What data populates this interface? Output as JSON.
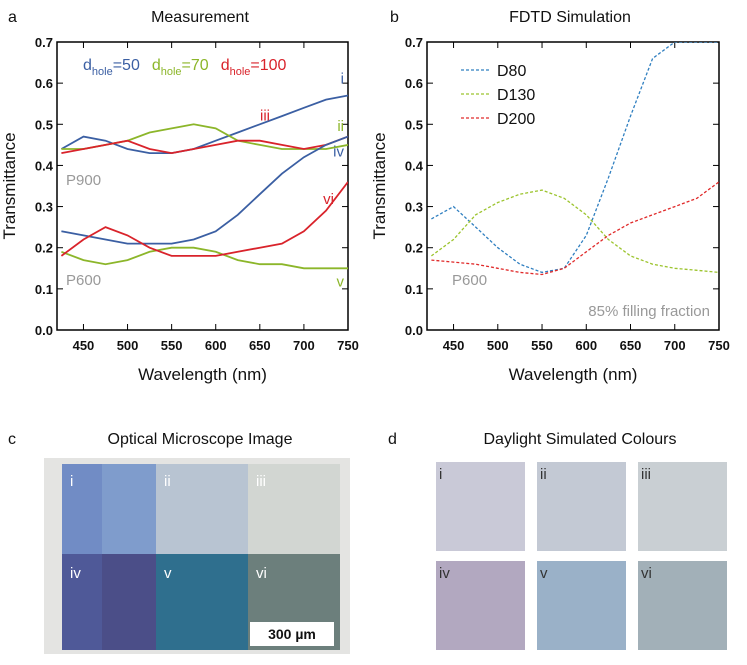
{
  "chart_data": [
    {
      "type": "line",
      "panel_label": "a",
      "title": "Measurement",
      "x_label": "Wavelength (nm)",
      "y_label": "Transmittance",
      "x": [
        425,
        450,
        475,
        500,
        525,
        550,
        575,
        600,
        625,
        650,
        675,
        700,
        725,
        750
      ],
      "xlim": [
        420,
        750
      ],
      "xticks": [
        450,
        500,
        550,
        600,
        650,
        700,
        750
      ],
      "ylim": [
        0,
        0.7
      ],
      "yticks": [
        {
          "value": 0,
          "label": "0.0"
        },
        0.1,
        0.2,
        0.3,
        0.4,
        0.5,
        0.6,
        0.7
      ],
      "legend": [
        {
          "text": "d",
          "subscript": "hole",
          "suffix": "=50",
          "color": "#3b5fa3"
        },
        {
          "text": "d",
          "subscript": "hole",
          "suffix": "=70",
          "color": "#8cb62a"
        },
        {
          "text": "d",
          "subscript": "hole",
          "suffix": "=100",
          "color": "#d9232b"
        }
      ],
      "annotations": [
        "P900",
        "P600"
      ],
      "line_style": "solid",
      "series": [
        {
          "label": "i",
          "color": "#3b5fa3",
          "values": [
            0.44,
            0.47,
            0.46,
            0.44,
            0.43,
            0.43,
            0.44,
            0.46,
            0.48,
            0.5,
            0.52,
            0.54,
            0.56,
            0.57
          ]
        },
        {
          "label": "ii",
          "color": "#8cb62a",
          "values": [
            0.44,
            0.44,
            0.45,
            0.46,
            0.48,
            0.49,
            0.5,
            0.49,
            0.46,
            0.45,
            0.44,
            0.44,
            0.44,
            0.45
          ]
        },
        {
          "label": "iii",
          "color": "#d9232b",
          "values": [
            0.43,
            0.44,
            0.45,
            0.46,
            0.44,
            0.43,
            0.44,
            0.45,
            0.46,
            0.46,
            0.45,
            0.44,
            0.45,
            0.47
          ]
        },
        {
          "label": "iv",
          "color": "#3b5fa3",
          "values": [
            0.24,
            0.23,
            0.22,
            0.21,
            0.21,
            0.21,
            0.22,
            0.24,
            0.28,
            0.33,
            0.38,
            0.42,
            0.45,
            0.47
          ]
        },
        {
          "label": "v",
          "color": "#8cb62a",
          "values": [
            0.19,
            0.17,
            0.16,
            0.17,
            0.19,
            0.2,
            0.2,
            0.19,
            0.17,
            0.16,
            0.16,
            0.15,
            0.15,
            0.15
          ]
        },
        {
          "label": "vi",
          "color": "#d9232b",
          "values": [
            0.18,
            0.22,
            0.25,
            0.23,
            0.2,
            0.18,
            0.18,
            0.18,
            0.19,
            0.2,
            0.21,
            0.24,
            0.29,
            0.36
          ]
        }
      ]
    },
    {
      "type": "line",
      "panel_label": "b",
      "title": "FDTD Simulation",
      "x_label": "Wavelength (nm)",
      "y_label": "Transmittance",
      "x": [
        425,
        450,
        475,
        500,
        525,
        550,
        575,
        600,
        625,
        650,
        675,
        700,
        725,
        750
      ],
      "xlim": [
        420,
        750
      ],
      "xticks": [
        450,
        500,
        550,
        600,
        650,
        700,
        750
      ],
      "ylim": [
        0,
        0.7
      ],
      "yticks": [
        {
          "value": 0,
          "label": "0.0"
        },
        0.1,
        0.2,
        0.3,
        0.4,
        0.5,
        0.6,
        0.7
      ],
      "annotations": [
        "P600",
        "85% filling fraction"
      ],
      "line_style": "dashed",
      "series": [
        {
          "name": "D80",
          "color": "#2f7fc0",
          "values": [
            0.27,
            0.3,
            0.25,
            0.2,
            0.16,
            0.14,
            0.15,
            0.23,
            0.37,
            0.52,
            0.66,
            0.7,
            0.7,
            0.7
          ]
        },
        {
          "name": "D130",
          "color": "#9cc42e",
          "values": [
            0.18,
            0.22,
            0.28,
            0.31,
            0.33,
            0.34,
            0.32,
            0.28,
            0.22,
            0.18,
            0.16,
            0.15,
            0.145,
            0.14
          ]
        },
        {
          "name": "D200",
          "color": "#e02a2a",
          "values": [
            0.17,
            0.165,
            0.16,
            0.15,
            0.14,
            0.135,
            0.15,
            0.19,
            0.23,
            0.26,
            0.28,
            0.3,
            0.32,
            0.36
          ]
        }
      ]
    }
  ],
  "microscope": {
    "panel_label": "c",
    "title": "Optical Microscope Image",
    "labels": [
      "i",
      "ii",
      "iii",
      "iv",
      "v",
      "vi"
    ],
    "scale_bar": "300 µm"
  },
  "colours": {
    "panel_label": "d",
    "title": "Daylight Simulated Colours",
    "swatches": [
      {
        "label": "i",
        "color": "#c9c9d7"
      },
      {
        "label": "ii",
        "color": "#c3c9d4"
      },
      {
        "label": "iii",
        "color": "#c9cfd3"
      },
      {
        "label": "iv",
        "color": "#b2a8c0"
      },
      {
        "label": "v",
        "color": "#9ab1c8"
      },
      {
        "label": "vi",
        "color": "#a2b0b8"
      }
    ]
  }
}
